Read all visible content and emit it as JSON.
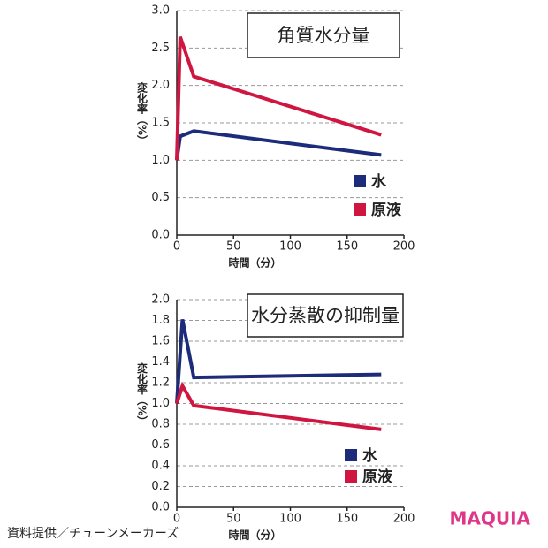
{
  "chart_data": [
    {
      "type": "line",
      "title": "角質水分量",
      "xlabel": "時間（分）",
      "ylabel": "変化率（%）",
      "x": [
        0,
        3,
        15,
        180
      ],
      "series": [
        {
          "name": "水",
          "color": "#1c2b7a",
          "values": [
            1.0,
            1.32,
            1.39,
            1.07
          ]
        },
        {
          "name": "原液",
          "color": "#cf1640",
          "values": [
            1.0,
            2.65,
            2.12,
            1.34
          ]
        }
      ],
      "xlim": [
        0,
        200
      ],
      "xticks": [
        0,
        50,
        100,
        150,
        200
      ],
      "ylim": [
        0,
        3
      ],
      "yticks": [
        {
          "value": 0,
          "label": "0.0"
        },
        0.5,
        {
          "value": 1,
          "label": "1.0"
        },
        1.5,
        {
          "value": 2,
          "label": "2.0"
        },
        2.5,
        {
          "value": 3,
          "label": "3.0"
        }
      ],
      "grid": true
    },
    {
      "type": "line",
      "title": "水分蒸散の抑制量",
      "xlabel": "時間（分）",
      "ylabel": "変化率（%）",
      "x": [
        0,
        5,
        15,
        180
      ],
      "series": [
        {
          "name": "水",
          "color": "#1c2b7a",
          "values": [
            1.0,
            1.81,
            1.25,
            1.28
          ]
        },
        {
          "name": "原液",
          "color": "#cf1640",
          "values": [
            1.0,
            1.17,
            0.98,
            0.75
          ]
        }
      ],
      "xlim": [
        0,
        200
      ],
      "xticks": [
        0,
        50,
        100,
        150,
        200
      ],
      "ylim": [
        0,
        2
      ],
      "yticks": [
        {
          "value": 0,
          "label": "0.0"
        },
        0.2,
        0.4,
        0.6,
        0.8,
        {
          "value": 1,
          "label": "1.0"
        },
        1.2,
        1.4,
        1.6,
        1.8,
        {
          "value": 2,
          "label": "2.0"
        }
      ],
      "grid": true
    }
  ],
  "source": "資料提供／チューンメーカーズ",
  "brand": "MAQUIA"
}
